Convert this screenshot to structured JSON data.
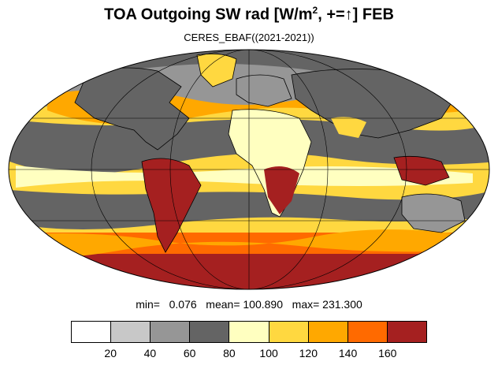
{
  "title": {
    "main": "TOA Outgoing SW rad [W/m",
    "sup": "2",
    "rest": ", +=↑] FEB"
  },
  "subtitle": "CERES_EBAF((2021-2021))",
  "stats": {
    "text": "min=   0.076   mean= 100.890   max= 231.300",
    "min": 0.076,
    "mean": 100.89,
    "max": 231.3
  },
  "colorbar": {
    "colors": [
      "#ffffff",
      "#c8c8c8",
      "#969696",
      "#646464",
      "#ffffc0",
      "#ffd840",
      "#ffa800",
      "#ff6a00",
      "#a52020"
    ],
    "tick_labels": [
      "20",
      "40",
      "60",
      "80",
      "100",
      "120",
      "140",
      "160"
    ]
  },
  "map": {
    "projection": "mollweide",
    "ocean_color": "#ffd840",
    "land_color": "#646464",
    "graticule_color": "#000000"
  }
}
